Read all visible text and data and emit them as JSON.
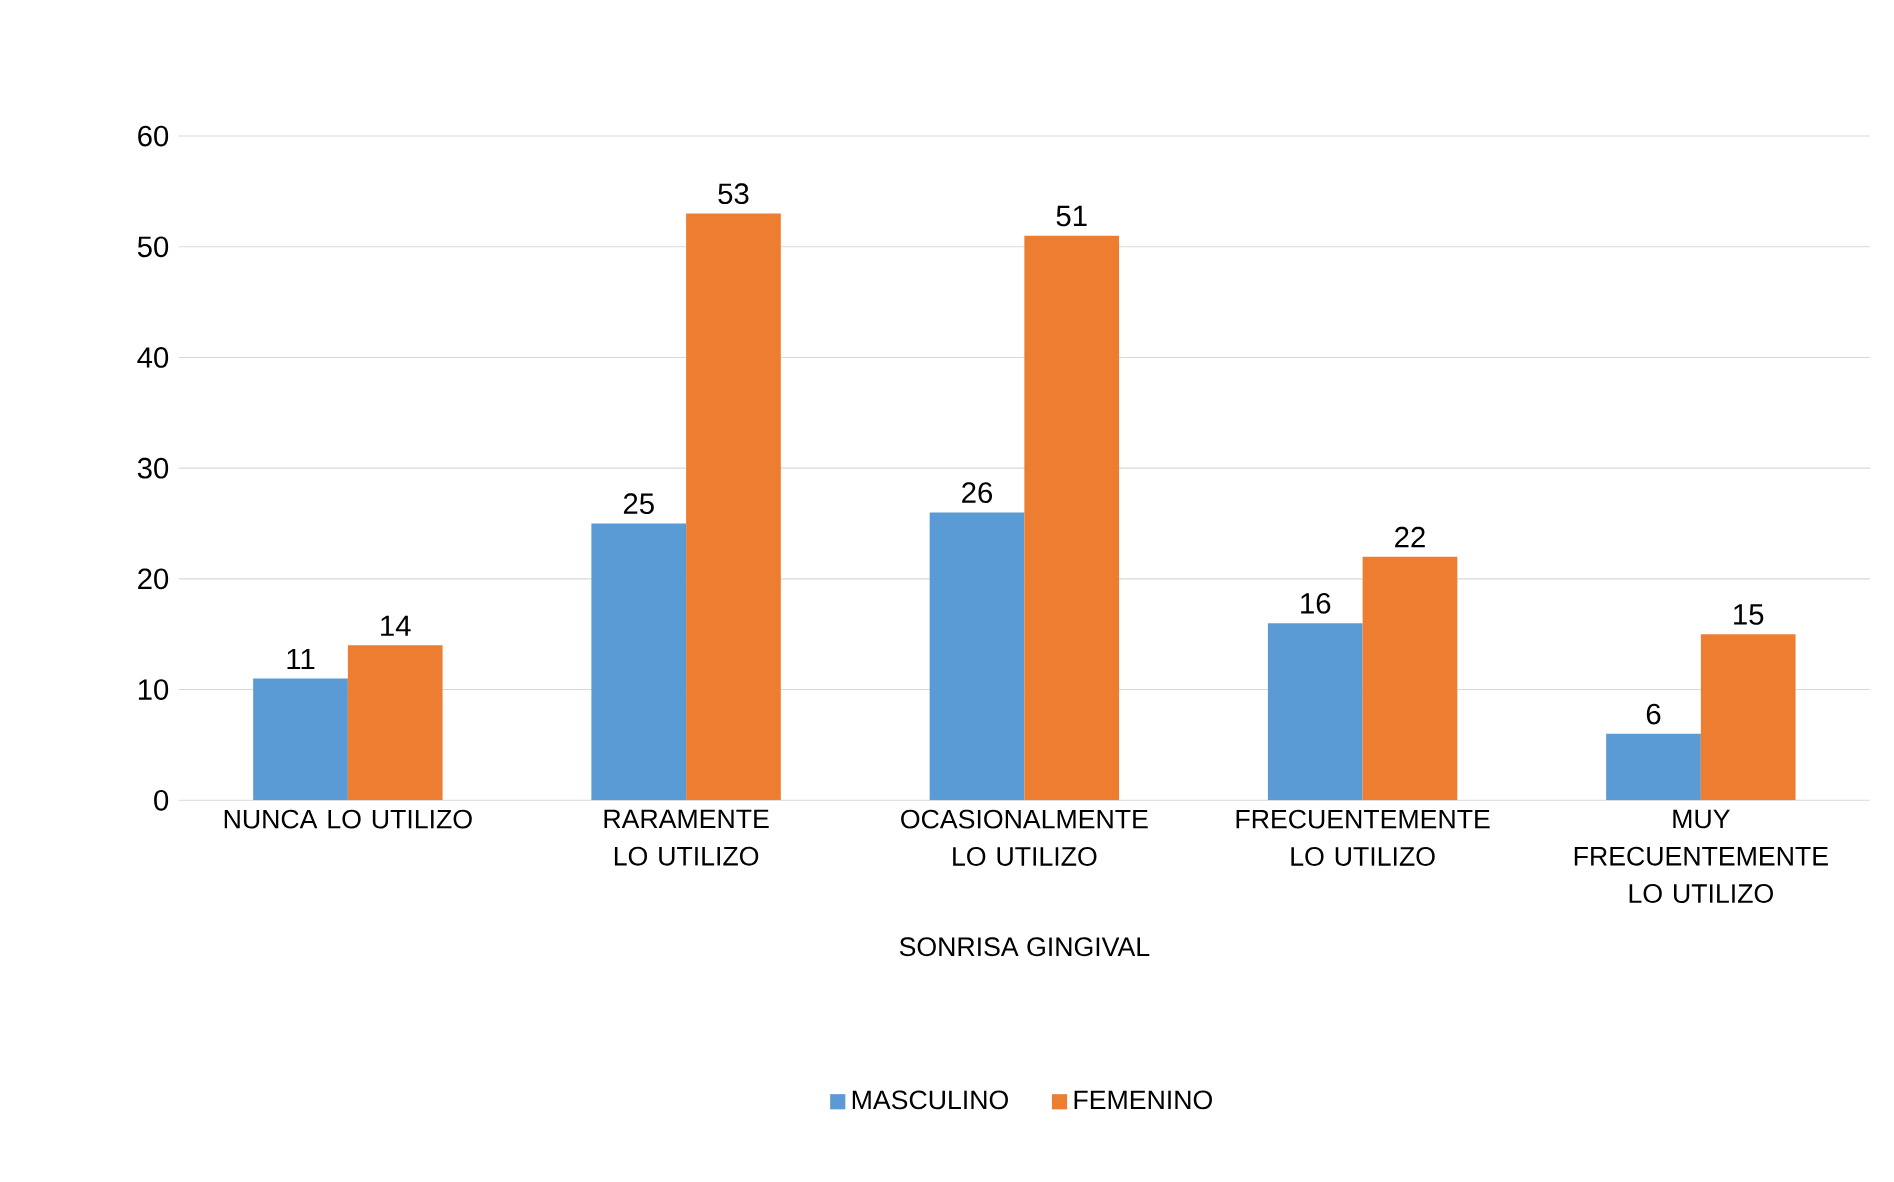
{
  "chart_data": {
    "type": "bar",
    "categories": [
      "NUNCA LO UTILIZO",
      "RARAMENTE LO UTILIZO",
      "OCASIONALMENTE LO UTILIZO",
      "FRECUENTEMENTE LO UTILIZO",
      "MUY FRECUENTEMENTE LO UTILIZO"
    ],
    "series": [
      {
        "name": "MASCULINO",
        "color": "#5b9bd5",
        "values": [
          11,
          25,
          26,
          16,
          6
        ]
      },
      {
        "name": "FEMENINO",
        "color": "#ed7d31",
        "values": [
          14,
          53,
          51,
          22,
          15
        ]
      }
    ],
    "xlabel": "SONRISA GINGIVAL",
    "ylim": [
      0,
      60
    ],
    "yticks": [
      0,
      10,
      20,
      30,
      40,
      50,
      60
    ],
    "grid": "y",
    "legend": "bottom",
    "data_labels": true
  }
}
